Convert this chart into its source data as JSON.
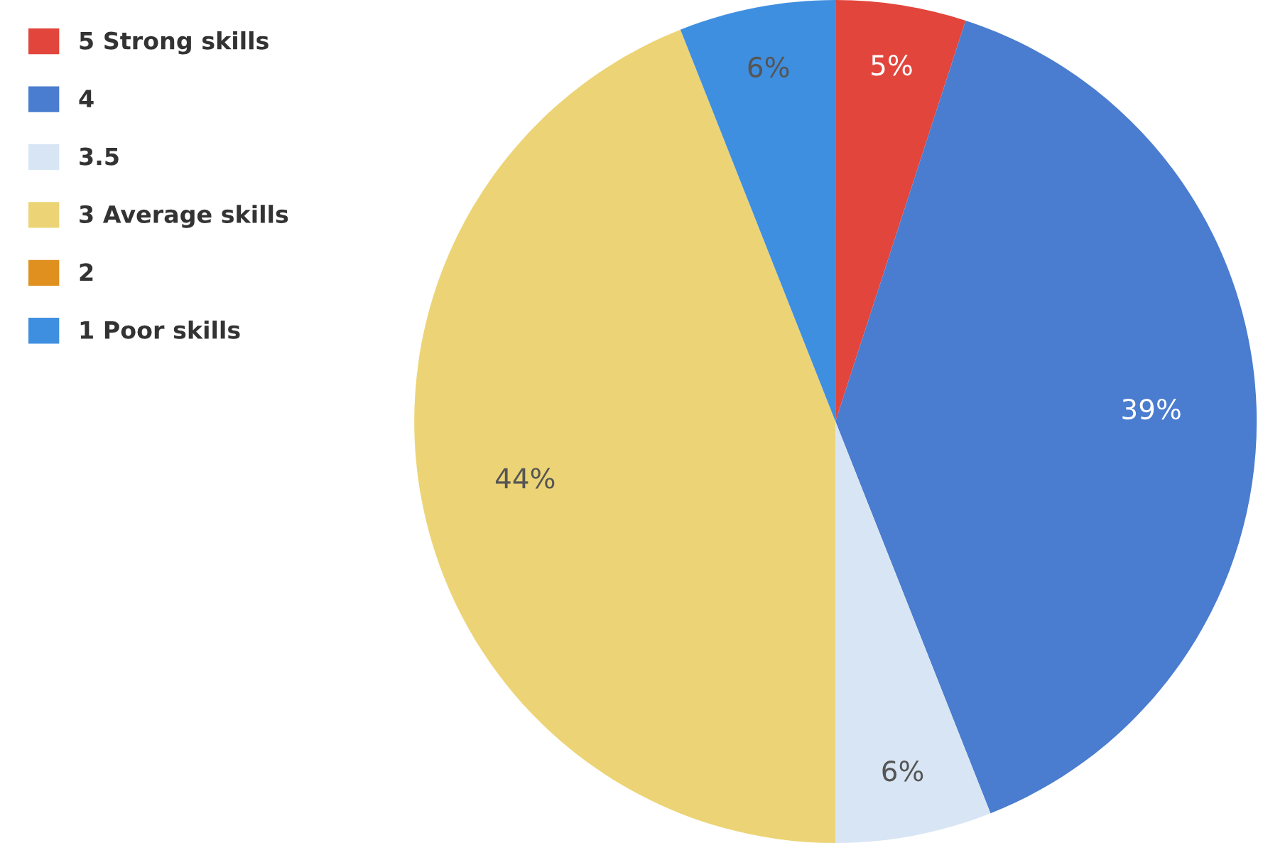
{
  "chart_data": {
    "type": "pie",
    "categories": [
      "5 Strong skills",
      "4",
      "3.5",
      "3 Average skills",
      "2",
      "1 Poor skills"
    ],
    "values": [
      5,
      39,
      6,
      44,
      0,
      6
    ],
    "value_labels": [
      "5%",
      "39%",
      "6%",
      "44%",
      null,
      "6%"
    ],
    "colors": [
      "#e2453b",
      "#4a7ccf",
      "#d8e5f4",
      "#ecd476",
      "#e0901e",
      "#3f8fe0"
    ],
    "legend": "top left"
  }
}
